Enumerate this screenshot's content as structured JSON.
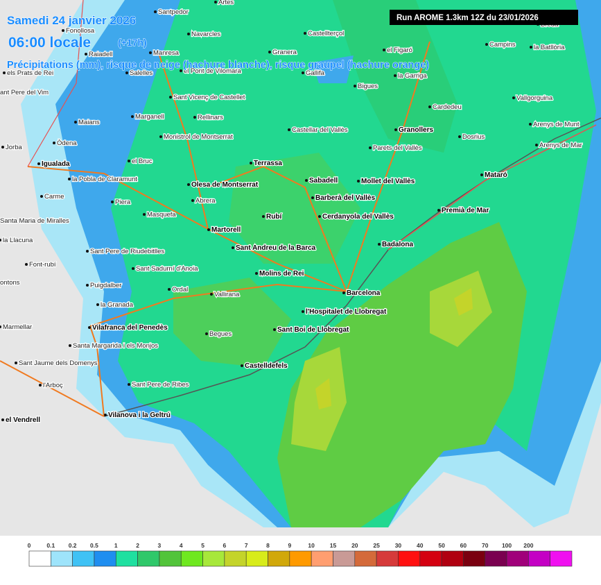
{
  "header": {
    "date": "Samedi 24 janvier 2026",
    "time": "06:00 locale",
    "offset": "(+17h)",
    "subtitle": "Précipitations (mm), risque de neige (hachure blanche), risque graupel (hachure orange)",
    "run": "Run AROME 1.3km 12Z du 23/01/2026"
  },
  "places": [
    {
      "name": "Artes",
      "major": false
    },
    {
      "name": "Santpedor",
      "major": false
    },
    {
      "name": "Fonollosa",
      "major": false
    },
    {
      "name": "Navarcles",
      "major": false
    },
    {
      "name": "Castellterçol",
      "major": false
    },
    {
      "name": "Raiadell",
      "major": false
    },
    {
      "name": "Manresa",
      "major": false
    },
    {
      "name": "Granera",
      "major": false
    },
    {
      "name": "el Figaró",
      "major": false
    },
    {
      "name": "Campins",
      "major": false
    },
    {
      "name": "la Batllòria",
      "major": false
    },
    {
      "name": "Breda",
      "major": false
    },
    {
      "name": "els Prats de Rei",
      "major": false
    },
    {
      "name": "Salelles",
      "major": false
    },
    {
      "name": "el Pont de Vilomara",
      "major": false
    },
    {
      "name": "Gallifa",
      "major": false
    },
    {
      "name": "la Garriga",
      "major": false
    },
    {
      "name": "ant Pere del Vim",
      "major": false
    },
    {
      "name": "Bigues",
      "major": false
    },
    {
      "name": "Sant Vicenç de Castellet",
      "major": false
    },
    {
      "name": "Cardedeu",
      "major": false
    },
    {
      "name": "Vallgorguina",
      "major": false
    },
    {
      "name": "Marganell",
      "major": false
    },
    {
      "name": "Rellinars",
      "major": false
    },
    {
      "name": "Maians",
      "major": false
    },
    {
      "name": "Arenys de Munt",
      "major": false
    },
    {
      "name": "Castellar del Vallès",
      "major": false
    },
    {
      "name": "Granollers",
      "major": true
    },
    {
      "name": "Òdena",
      "major": false
    },
    {
      "name": "Monistrol de Montserrat",
      "major": false
    },
    {
      "name": "Dosrius",
      "major": false
    },
    {
      "name": "Jorba",
      "major": false
    },
    {
      "name": "Parets del Vallès",
      "major": false
    },
    {
      "name": "Arenys de Mar",
      "major": false
    },
    {
      "name": "Igualada",
      "major": true
    },
    {
      "name": "el Bruc",
      "major": false
    },
    {
      "name": "Terrassa",
      "major": true
    },
    {
      "name": "la Pobla de Claramunt",
      "major": false
    },
    {
      "name": "Olesa de Montserrat",
      "major": true
    },
    {
      "name": "Sabadell",
      "major": true
    },
    {
      "name": "Mollet del Vallès",
      "major": true
    },
    {
      "name": "Mataró",
      "major": true
    },
    {
      "name": "Carme",
      "major": false
    },
    {
      "name": "Piera",
      "major": false
    },
    {
      "name": "Abrera",
      "major": false
    },
    {
      "name": "Barberà del Vallès",
      "major": true
    },
    {
      "name": "Premià de Mar",
      "major": true
    },
    {
      "name": "Santa Maria de Miralles",
      "major": false
    },
    {
      "name": "Masquefa",
      "major": false
    },
    {
      "name": "Rubí",
      "major": true
    },
    {
      "name": "Cerdanyola del Vallès",
      "major": true
    },
    {
      "name": "Martorell",
      "major": true
    },
    {
      "name": "la Llacuna",
      "major": false
    },
    {
      "name": "Badalona",
      "major": true
    },
    {
      "name": "Sant Andreu de la Barca",
      "major": true
    },
    {
      "name": "Sant Pere de Riudebitlles",
      "major": false
    },
    {
      "name": "Font-rubí",
      "major": false
    },
    {
      "name": "Sant Sadurní d'Anoia",
      "major": false
    },
    {
      "name": "Molins de Rei",
      "major": true
    },
    {
      "name": "ontons",
      "major": false
    },
    {
      "name": "Puigdalber",
      "major": false
    },
    {
      "name": "Ordal",
      "major": false
    },
    {
      "name": "Vallirana",
      "major": false
    },
    {
      "name": "Barcelona",
      "major": true
    },
    {
      "name": "la Granada",
      "major": false
    },
    {
      "name": "l'Hospitalet de Llobregat",
      "major": true
    },
    {
      "name": "Marmellar",
      "major": false
    },
    {
      "name": "Vilafranca del Penedès",
      "major": true
    },
    {
      "name": "Sant Boi de Llobregat",
      "major": true
    },
    {
      "name": "Begues",
      "major": false
    },
    {
      "name": "Santa Margarida i els Monjos",
      "major": false
    },
    {
      "name": "Sant Jaume dels Domenys",
      "major": false
    },
    {
      "name": "Castelldefels",
      "major": true
    },
    {
      "name": "l'Arboç",
      "major": false
    },
    {
      "name": "Sant Pere de Ribes",
      "major": false
    },
    {
      "name": "Vilanova i la Geltrú",
      "major": true
    },
    {
      "name": "el Vendrell",
      "major": true
    }
  ],
  "legend": {
    "labels": [
      "0",
      "0.1",
      "0.2",
      "0.5",
      "1",
      "2",
      "3",
      "4",
      "5",
      "6",
      "7",
      "8",
      "9",
      "10",
      "15",
      "20",
      "25",
      "30",
      "40",
      "50",
      "60",
      "70",
      "100",
      "200"
    ],
    "colors": [
      "#ffffff",
      "#9ee4fb",
      "#3fc2f5",
      "#1f8ef0",
      "#1fe0a0",
      "#2fc86a",
      "#52c43a",
      "#6fe81f",
      "#a7e83a",
      "#c4d42a",
      "#d8ec1a",
      "#d1a80a",
      "#ff9a00",
      "#ff9e70",
      "#c99a96",
      "#d46a3a",
      "#d63a3a",
      "#ff1010",
      "#d40010",
      "#b00010",
      "#7a0010",
      "#7a0050",
      "#a0007a",
      "#c400c4",
      "#f010f0"
    ]
  }
}
